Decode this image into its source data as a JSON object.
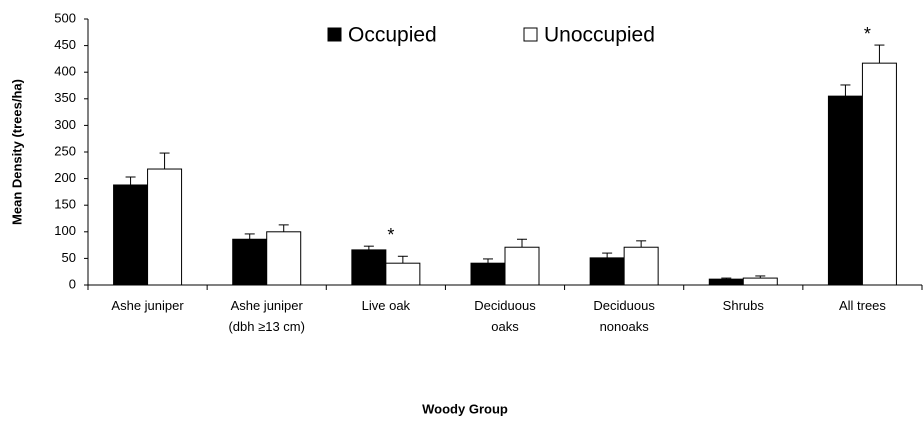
{
  "chart_data": {
    "type": "bar",
    "x_label": "Woody Group",
    "y_label": "Mean Density (trees/ha)",
    "categories": [
      [
        "Ashe juniper"
      ],
      [
        "Ashe juniper",
        "(dbh ≥13 cm)"
      ],
      [
        "Live oak"
      ],
      [
        "Deciduous",
        "oaks"
      ],
      [
        "Deciduous",
        "nonoaks"
      ],
      [
        "Shrubs"
      ],
      [
        "All trees"
      ]
    ],
    "series": [
      {
        "name": "Occupied",
        "color": "#000000",
        "values": [
          188,
          86,
          66,
          41,
          51,
          11,
          355
        ],
        "errors": [
          15,
          10,
          7,
          8,
          9,
          2,
          21
        ]
      },
      {
        "name": "Unoccupied",
        "color": "#ffffff",
        "values": [
          218,
          100,
          41,
          71,
          71,
          13,
          417
        ],
        "errors": [
          30,
          13,
          13,
          15,
          12,
          4,
          34
        ]
      }
    ],
    "significance": [
      null,
      null,
      "*",
      null,
      null,
      null,
      "*"
    ],
    "ylim": [
      0,
      500
    ],
    "yticks": [
      0,
      50,
      100,
      150,
      200,
      250,
      300,
      350,
      400,
      450,
      500
    ],
    "legend": "top"
  }
}
